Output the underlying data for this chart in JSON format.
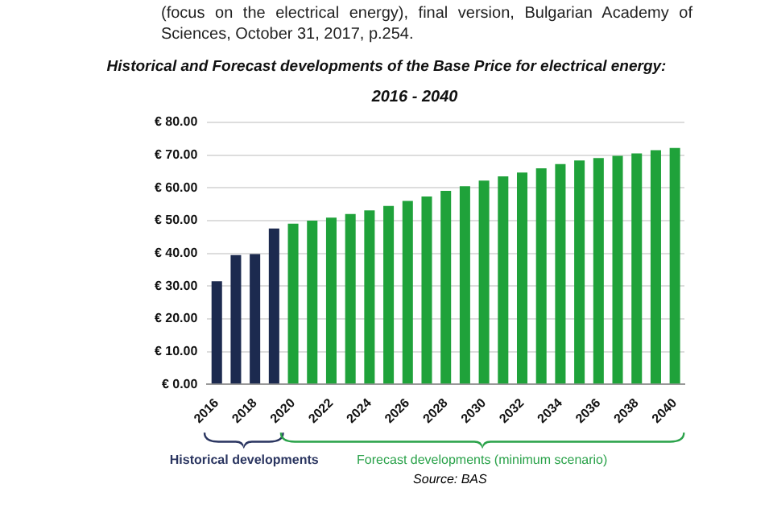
{
  "chart_data": {
    "type": "bar",
    "title": "Historical and Forecast developments of the Base Price for electrical energy:",
    "subtitle": "2016 - 2040",
    "categories": [
      "2016",
      null,
      "2018",
      null,
      "2020",
      null,
      "2022",
      null,
      "2024",
      null,
      "2026",
      null,
      "2028",
      null,
      "2030",
      null,
      "2032",
      null,
      "2034",
      null,
      "2036",
      null,
      "2038",
      null,
      "2040"
    ],
    "values": [
      31.5,
      39.5,
      39.8,
      47.6,
      49.1,
      50,
      50.9,
      52,
      53.1,
      54.5,
      56,
      57.4,
      59.1,
      60.5,
      62.2,
      63.5,
      64.7,
      66,
      67.3,
      68.4,
      69.1,
      69.8,
      70.5,
      71.5,
      72.2
    ],
    "colors": [
      "#1c2a4f",
      "#1c2a4f",
      "#1c2a4f",
      "#1c2a4f",
      "#1fa23a",
      "#1fa23a",
      "#1fa23a",
      "#1fa23a",
      "#1fa23a",
      "#1fa23a",
      "#1fa23a",
      "#1fa23a",
      "#1fa23a",
      "#1fa23a",
      "#1fa23a",
      "#1fa23a",
      "#1fa23a",
      "#1fa23a",
      "#1fa23a",
      "#1fa23a",
      "#1fa23a",
      "#1fa23a",
      "#1fa23a",
      "#1fa23a",
      "#1fa23a"
    ],
    "ylim": [
      0,
      80
    ],
    "yticks": [
      {
        "value": 0,
        "label": "€ 0.00"
      },
      {
        "value": 10,
        "label": "€ 10.00"
      },
      {
        "value": 20,
        "label": "€ 20.00"
      },
      {
        "value": 30,
        "label": "€ 30.00"
      },
      {
        "value": 40,
        "label": "€ 40.00"
      },
      {
        "value": 50,
        "label": "€ 50.00"
      },
      {
        "value": 60,
        "label": "€ 60.00"
      },
      {
        "value": 70,
        "label": "€ 70.00"
      },
      {
        "value": 80,
        "label": "€ 80.00"
      }
    ],
    "grid": "y",
    "legend": false,
    "annotations": [
      "(focus on the electrical energy), final version, Bulgarian Academy of Sciences, October 31, 2017, p.254.",
      "Historical developments",
      "Forecast developments (minimum scenario)",
      "Source: BAS"
    ]
  }
}
